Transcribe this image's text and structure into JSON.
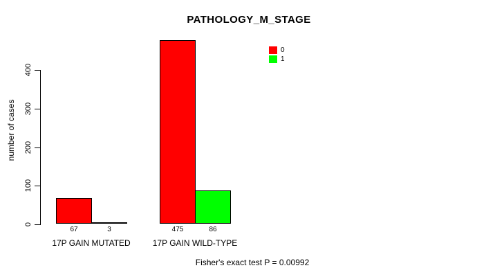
{
  "chart_data": {
    "type": "bar",
    "title": "PATHOLOGY_M_STAGE",
    "ylabel": "number of cases",
    "xlabel": "",
    "ylim": [
      0,
      400
    ],
    "yticks": [
      0,
      100,
      200,
      300,
      400
    ],
    "grid": false,
    "legend_position": "top-right",
    "categories": [
      "17P GAIN MUTATED",
      "17P GAIN WILD-TYPE"
    ],
    "series": [
      {
        "name": "0",
        "color": "#ff0000",
        "values": [
          67,
          475
        ]
      },
      {
        "name": "1",
        "color": "#00ff00",
        "values": [
          3,
          86
        ]
      }
    ],
    "bar_value_labels": [
      [
        "67",
        "3"
      ],
      [
        "475",
        "86"
      ]
    ],
    "footnote": "Fisher's exact test P = 0.00992",
    "colors": {
      "series0": "#ff0000",
      "series1": "#00ff00",
      "axis": "#000000",
      "background": "#ffffff"
    }
  }
}
